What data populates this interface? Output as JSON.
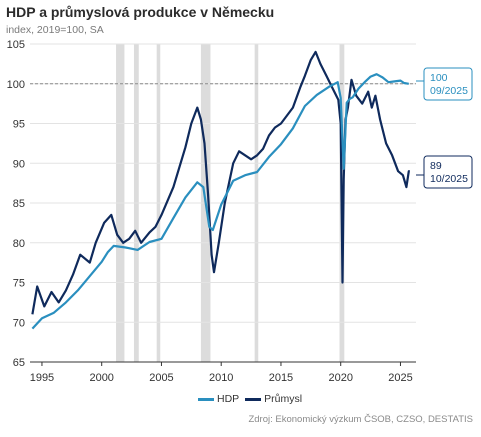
{
  "title": "HDP a průmyslová produkce v Německu",
  "subtitle": "index, 2019=100, SA",
  "source": "Zdroj: Ekonomický výzkum ČSOB, CZSO, DESTATIS",
  "colors": {
    "hdp": "#2a8fbf",
    "prumysl": "#0f2a5c",
    "recession": "#dcdcdc",
    "grid": "#e3e3e3",
    "ref": "#8a8a8a"
  },
  "chart_data": {
    "type": "line",
    "xlim": [
      1994.0,
      2026.3
    ],
    "ylim": [
      65,
      105
    ],
    "yticks": [
      65,
      70,
      75,
      80,
      85,
      90,
      95,
      100,
      105
    ],
    "xticks": [
      1995,
      2000,
      2005,
      2010,
      2015,
      2020,
      2025
    ],
    "reference_line": 100,
    "recession_bands": [
      [
        2001.2,
        2001.9
      ],
      [
        2002.7,
        2003.1
      ],
      [
        2004.6,
        2004.9
      ],
      [
        2008.3,
        2009.1
      ],
      [
        2012.8,
        2013.1
      ],
      [
        2019.9,
        2020.3
      ]
    ],
    "series": [
      {
        "name": "HDP",
        "x": [
          1994.2,
          1995,
          1996,
          1997,
          1998,
          1999,
          2000,
          2000.5,
          2001,
          2002,
          2003,
          2004,
          2005,
          2006,
          2007,
          2008,
          2008.5,
          2009,
          2009.3,
          2010,
          2011,
          2012,
          2013,
          2014,
          2015,
          2016,
          2017,
          2018,
          2019,
          2019.75,
          2020.0,
          2020.25,
          2020.5,
          2020.75,
          2021,
          2021.5,
          2022,
          2022.5,
          2023,
          2023.5,
          2024,
          2024.5,
          2025,
          2025.3,
          2025.7
        ],
        "y": [
          69.2,
          70.5,
          71.2,
          72.5,
          74.0,
          75.8,
          77.6,
          78.8,
          79.6,
          79.4,
          79.1,
          80.1,
          80.5,
          83.1,
          85.7,
          87.6,
          87.0,
          82.0,
          81.6,
          84.8,
          87.8,
          88.5,
          88.9,
          90.8,
          92.4,
          94.4,
          97.2,
          98.6,
          99.6,
          100.2,
          98.2,
          89.3,
          97.6,
          98.1,
          98.3,
          99.4,
          100.2,
          100.9,
          101.2,
          100.8,
          100.2,
          100.3,
          100.4,
          100.1,
          100.0
        ]
      },
      {
        "name": "Průmysl",
        "x": [
          1994.2,
          1994.6,
          1995.2,
          1995.8,
          1996.4,
          1997,
          1997.6,
          1998.2,
          1999,
          1999.5,
          2000.2,
          2000.8,
          2001.3,
          2001.8,
          2002.3,
          2002.8,
          2003.3,
          2004,
          2004.5,
          2005,
          2006,
          2007,
          2007.5,
          2008,
          2008.3,
          2008.6,
          2008.9,
          2009.2,
          2009.4,
          2009.8,
          2010.3,
          2011,
          2011.5,
          2012,
          2012.5,
          2013,
          2013.5,
          2014,
          2014.5,
          2015,
          2016,
          2016.6,
          2017,
          2017.5,
          2017.9,
          2018.3,
          2018.8,
          2019.3,
          2019.8,
          2020.0,
          2020.15,
          2020.25,
          2020.4,
          2020.6,
          2020.9,
          2021.3,
          2021.8,
          2022.3,
          2022.6,
          2022.9,
          2023.3,
          2023.8,
          2024.3,
          2024.8,
          2025.2,
          2025.5,
          2025.7,
          2025.78
        ],
        "y": [
          71.0,
          74.5,
          72.0,
          73.8,
          72.5,
          74.0,
          76.0,
          78.5,
          77.5,
          80.0,
          82.5,
          83.5,
          81.0,
          80.0,
          80.5,
          81.5,
          80.0,
          81.3,
          82.0,
          83.5,
          87.0,
          92.0,
          95.0,
          97.0,
          95.5,
          92.5,
          86.0,
          78.5,
          76.3,
          80.0,
          85.0,
          90.0,
          91.5,
          91.0,
          90.5,
          91.0,
          91.8,
          93.5,
          94.5,
          95.0,
          97.0,
          99.5,
          101.0,
          103.0,
          104.0,
          102.5,
          101.0,
          99.5,
          98.0,
          95.0,
          75.0,
          88.0,
          95.5,
          97.0,
          100.5,
          98.5,
          97.5,
          99.0,
          97.0,
          98.5,
          95.5,
          92.5,
          91.0,
          89.0,
          88.5,
          87.0,
          89.0,
          89.0
        ]
      }
    ],
    "callouts": [
      {
        "series": "HDP",
        "value": "100",
        "date": "09/2025"
      },
      {
        "series": "Průmysl",
        "value": "89",
        "date": "10/2025"
      }
    ]
  }
}
